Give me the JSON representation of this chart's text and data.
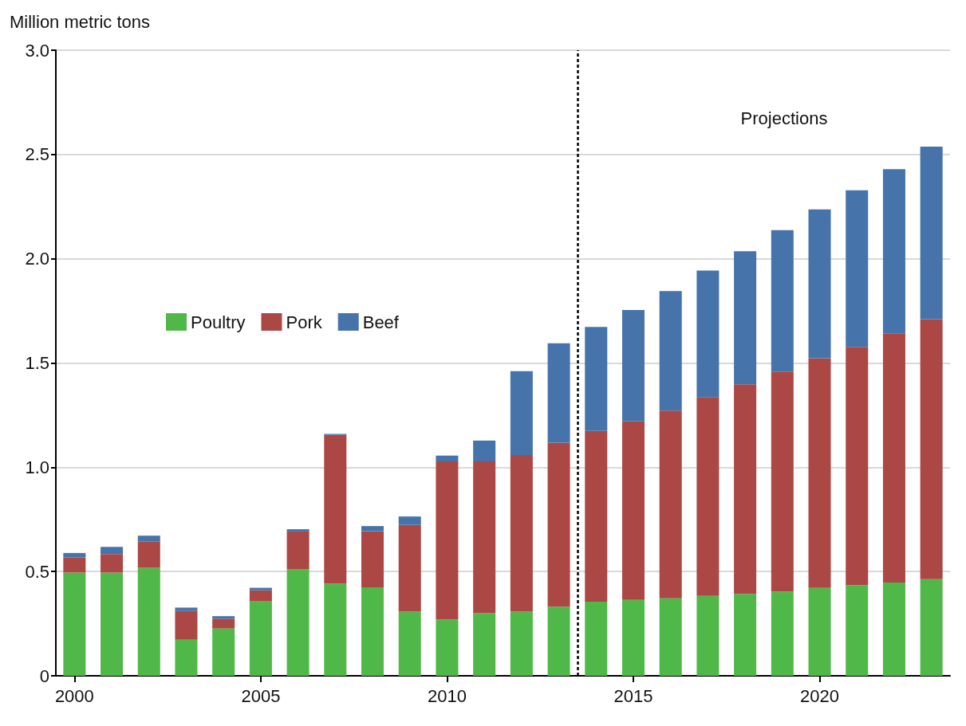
{
  "chart_data": {
    "type": "bar",
    "stacked": true,
    "ylabel": "Million metric tons",
    "x": [
      2000,
      2001,
      2002,
      2003,
      2004,
      2005,
      2006,
      2007,
      2008,
      2009,
      2010,
      2011,
      2012,
      2013,
      2014,
      2015,
      2016,
      2017,
      2018,
      2019,
      2020,
      2021,
      2022,
      2023
    ],
    "series": [
      {
        "name": "Poultry",
        "color": "#50b848",
        "values": [
          0.495,
          0.495,
          0.518,
          0.173,
          0.227,
          0.357,
          0.51,
          0.442,
          0.424,
          0.308,
          0.27,
          0.301,
          0.308,
          0.332,
          0.355,
          0.364,
          0.372,
          0.383,
          0.393,
          0.404,
          0.421,
          0.435,
          0.447,
          0.463
        ]
      },
      {
        "name": "Pork",
        "color": "#ab4744",
        "values": [
          0.073,
          0.089,
          0.125,
          0.138,
          0.047,
          0.053,
          0.182,
          0.713,
          0.269,
          0.416,
          0.758,
          0.727,
          0.751,
          0.786,
          0.819,
          0.856,
          0.9,
          0.954,
          1.005,
          1.055,
          1.102,
          1.142,
          1.195,
          1.247
        ]
      },
      {
        "name": "Beef",
        "color": "#4674aa",
        "values": [
          0.021,
          0.034,
          0.029,
          0.016,
          0.012,
          0.012,
          0.011,
          0.005,
          0.025,
          0.04,
          0.028,
          0.1,
          0.402,
          0.477,
          0.499,
          0.534,
          0.573,
          0.606,
          0.638,
          0.678,
          0.714,
          0.751,
          0.788,
          0.828
        ]
      }
    ],
    "xlim": [
      1999.5,
      2023.5
    ],
    "xticks": [
      2000,
      2005,
      2010,
      2015,
      2020
    ],
    "ylim": [
      0,
      3
    ],
    "yticks": [
      0,
      0.5,
      {
        "value": 1,
        "label": "1.0"
      },
      1.5,
      {
        "value": 2,
        "label": "2.0"
      },
      2.5,
      {
        "value": 3,
        "label": "3.0"
      }
    ],
    "grid": "y",
    "legend": "left",
    "ref_lines": [
      {
        "axis": "x",
        "value": 2013.5,
        "line_style": "dashed",
        "color": "#000000"
      }
    ],
    "annotations": [
      "Projections"
    ]
  }
}
